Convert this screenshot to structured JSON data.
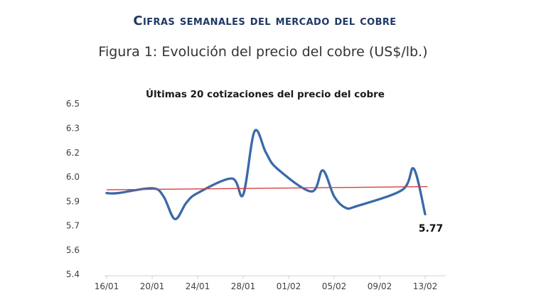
{
  "page": {
    "title": "Cifras semanales del mercado del cobre",
    "figure_caption": "Figura 1: Evolución del precio del cobre (US$/lb.)"
  },
  "colors": {
    "title": "#1f3864",
    "subtitle": "#333333",
    "line": "#3a69a8",
    "trend": "#d64040",
    "axis": "#d9d9d9",
    "tick_text": "#3f3f3f"
  },
  "chart_data": {
    "type": "line",
    "title": "Últimas 20 cotizaciones del precio del cobre",
    "series_name": "Precio del cobre (US$/lb.)",
    "x": [
      "16/01",
      "17/01",
      "20/01",
      "21/01",
      "22/01",
      "23/01",
      "24/01",
      "27/01",
      "28/01",
      "29/01",
      "30/01",
      "31/01",
      "03/02",
      "04/02",
      "05/02",
      "06/02",
      "07/02",
      "11/02",
      "12/02",
      "13/02"
    ],
    "day_offsets": [
      0,
      1,
      4,
      5,
      6,
      7,
      8,
      11,
      12,
      13,
      14,
      15,
      18,
      19,
      20,
      21,
      22,
      26,
      27,
      28
    ],
    "values": [
      5.9,
      5.9,
      5.93,
      5.88,
      5.74,
      5.84,
      5.9,
      5.99,
      5.89,
      6.28,
      6.15,
      6.05,
      5.91,
      6.04,
      5.88,
      5.81,
      5.82,
      5.92,
      6.05,
      5.77
    ],
    "last_point_label": "5.77",
    "trendline": {
      "start_day": 0,
      "end_day": 28.2,
      "start_value": 5.92,
      "end_value": 5.94,
      "color": "#d64040"
    },
    "ylim": [
      5.4,
      6.45
    ],
    "ytick_step": 0.15,
    "ytick_labels": [
      "6.5",
      "6.3",
      "6.2",
      "6.0",
      "5.9",
      "5.7",
      "5.6",
      "5.4"
    ],
    "xtick_labels": [
      "16/01",
      "20/01",
      "24/01",
      "28/01",
      "01/02",
      "05/02",
      "09/02",
      "13/02"
    ],
    "grid": false,
    "legend": "none",
    "line_smoothing": true
  }
}
